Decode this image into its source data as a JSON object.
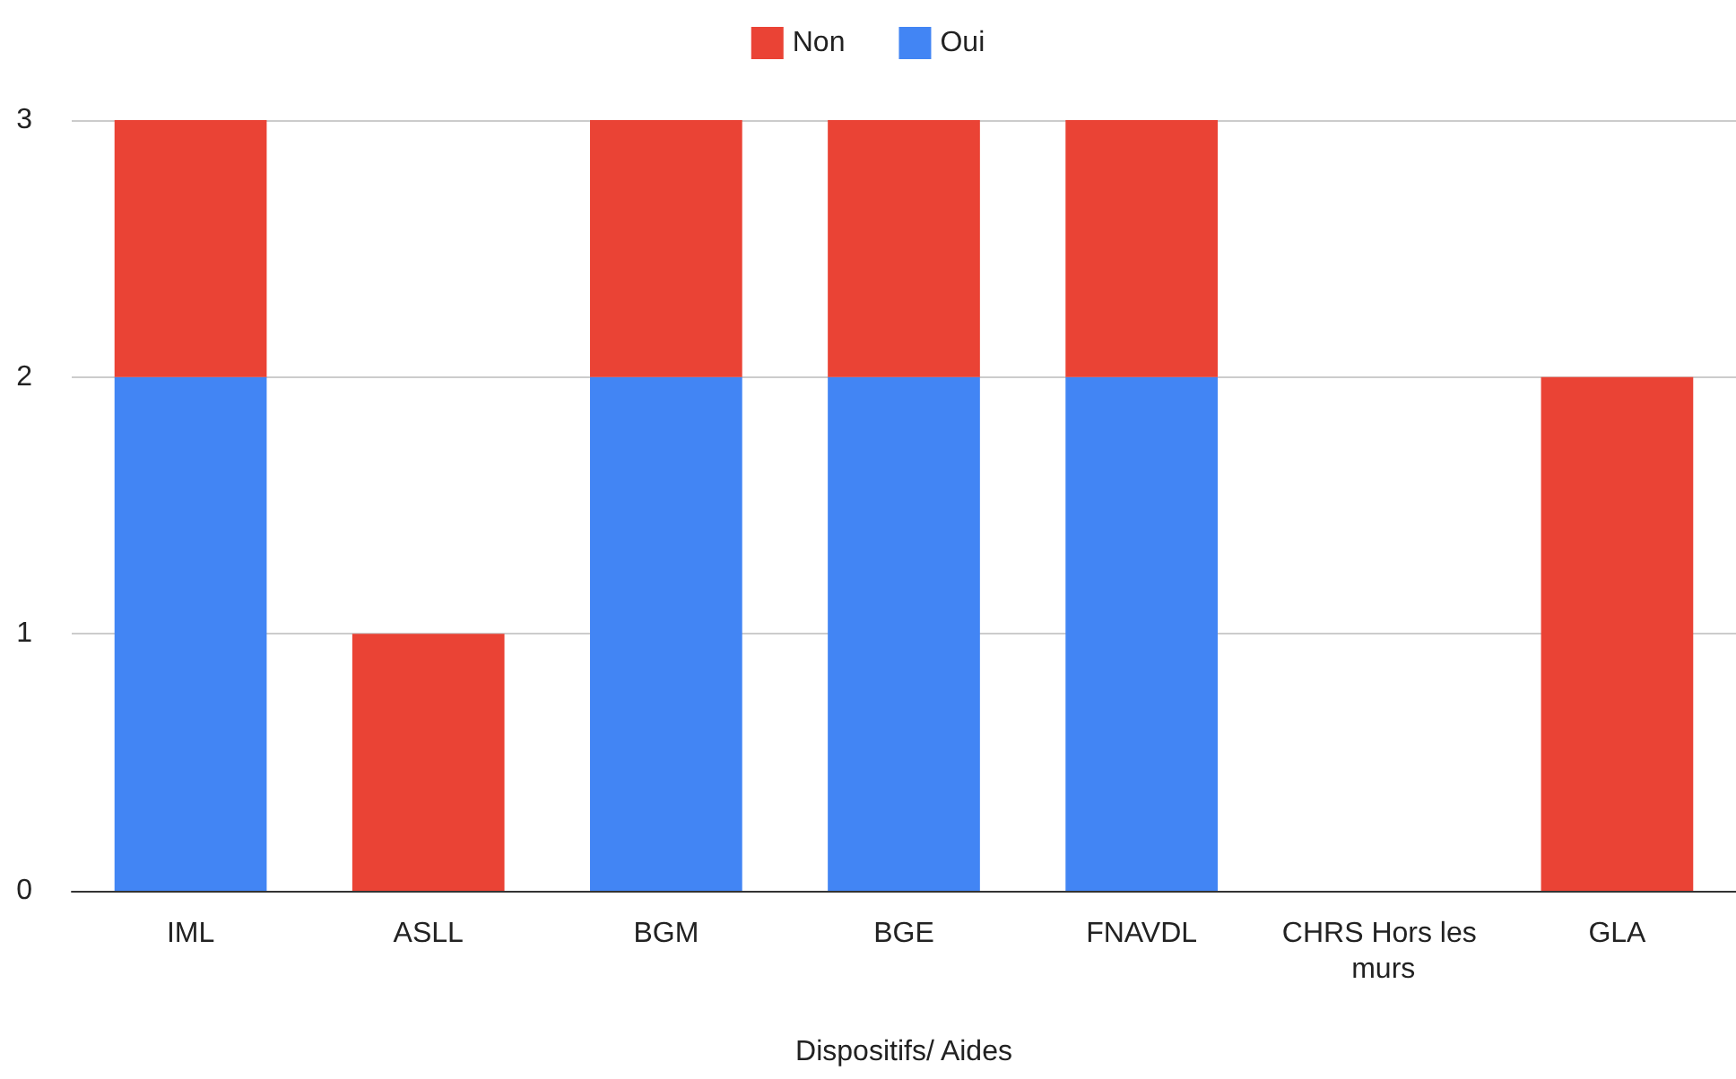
{
  "chart_data": {
    "type": "bar",
    "stacked": true,
    "xlabel": "Dispositifs/ Aides",
    "categories": [
      "IML",
      "ASLL",
      "BGM",
      "BGE",
      "FNAVDL",
      "CHRS Hors les murs",
      "GLA"
    ],
    "series": [
      {
        "name": "Oui",
        "color": "#4285f4",
        "values": [
          2,
          0,
          2,
          2,
          2,
          0,
          0
        ]
      },
      {
        "name": "Non",
        "color": "#ea4335",
        "values": [
          1,
          1,
          1,
          1,
          1,
          0,
          2
        ]
      }
    ],
    "ylim": [
      0,
      3
    ],
    "yticks": [
      0,
      1,
      2,
      3
    ],
    "grid": "y",
    "legend": "top"
  }
}
